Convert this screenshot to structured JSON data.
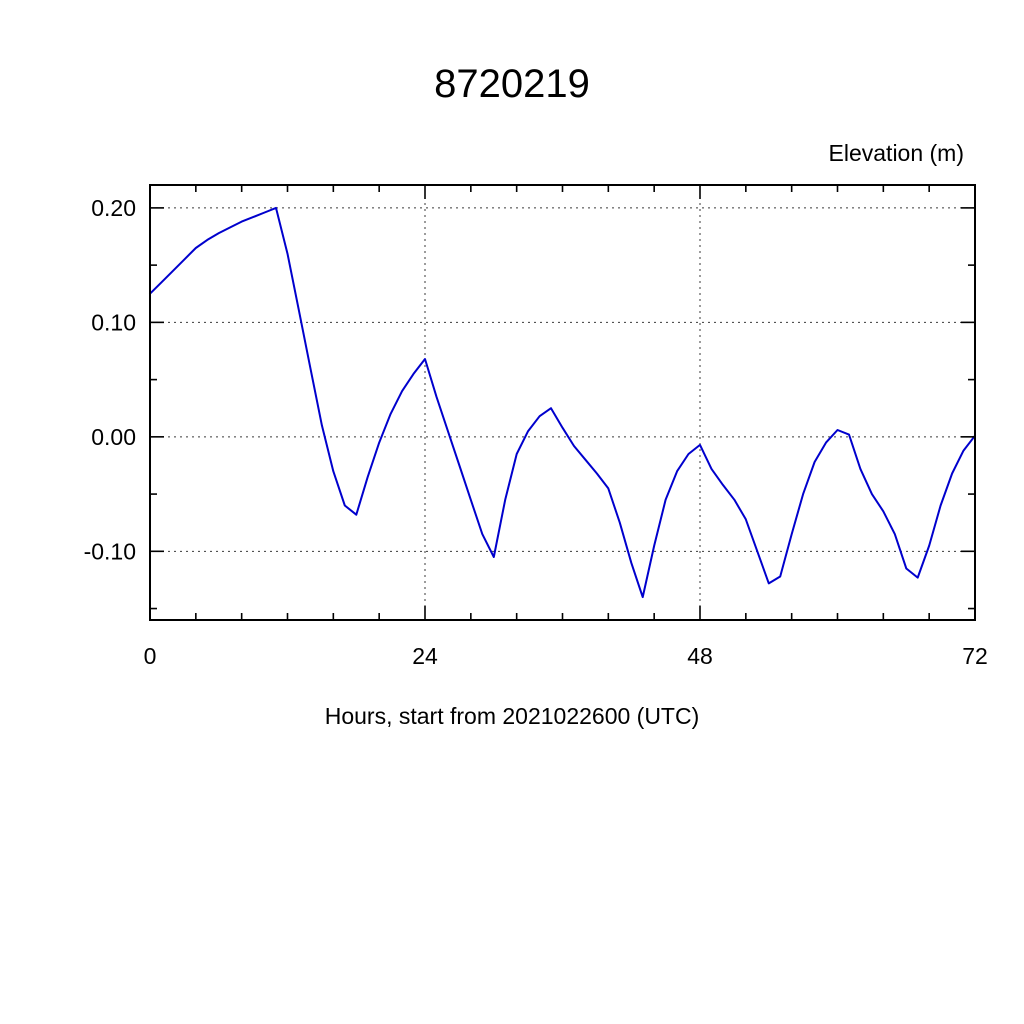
{
  "chart_data": {
    "type": "line",
    "title": "8720219",
    "ylabel": "Elevation (m)",
    "xlabel": "Hours, start from 2021022600 (UTC)",
    "xlim": [
      0,
      72
    ],
    "ylim": [
      -0.16,
      0.22
    ],
    "x_major_ticks": [
      0,
      24,
      48,
      72
    ],
    "x_minor_step": 4,
    "y_major_ticks": [
      0.2,
      0.1,
      0.0,
      -0.1
    ],
    "y_minor_step": 0.05,
    "x_gridlines": [
      24,
      48
    ],
    "y_gridlines": [
      0.2,
      0.1,
      0.0,
      -0.1
    ],
    "grid_style": "dotted",
    "legend_position": "none",
    "line_color": "#0000cd",
    "series": [
      {
        "name": "elevation",
        "x": [
          0,
          1,
          2,
          3,
          4,
          5,
          6,
          7,
          8,
          9,
          10,
          11,
          12,
          13,
          14,
          15,
          16,
          17,
          18,
          19,
          20,
          21,
          22,
          23,
          24,
          25,
          26,
          27,
          28,
          29,
          30,
          31,
          32,
          33,
          34,
          35,
          36,
          37,
          38,
          39,
          40,
          41,
          42,
          43,
          44,
          45,
          46,
          47,
          48,
          49,
          50,
          51,
          52,
          53,
          54,
          55,
          56,
          57,
          58,
          59,
          60,
          61,
          62,
          63,
          64,
          65,
          66,
          67,
          68,
          69,
          70,
          71,
          72
        ],
        "y": [
          0.125,
          0.135,
          0.145,
          0.155,
          0.165,
          0.172,
          0.178,
          0.183,
          0.188,
          0.192,
          0.196,
          0.2,
          0.16,
          0.11,
          0.06,
          0.01,
          -0.03,
          -0.06,
          -0.068,
          -0.035,
          -0.005,
          0.02,
          0.04,
          0.055,
          0.068,
          0.035,
          0.005,
          -0.025,
          -0.055,
          -0.085,
          -0.105,
          -0.055,
          -0.015,
          0.005,
          0.018,
          0.025,
          0.008,
          -0.008,
          -0.02,
          -0.032,
          -0.045,
          -0.075,
          -0.11,
          -0.14,
          -0.095,
          -0.055,
          -0.03,
          -0.015,
          -0.007,
          -0.028,
          -0.042,
          -0.055,
          -0.072,
          -0.1,
          -0.128,
          -0.122,
          -0.085,
          -0.05,
          -0.022,
          -0.005,
          0.006,
          0.002,
          -0.028,
          -0.05,
          -0.065,
          -0.085,
          -0.115,
          -0.123,
          -0.095,
          -0.06,
          -0.032,
          -0.012,
          0.001
        ]
      }
    ]
  }
}
